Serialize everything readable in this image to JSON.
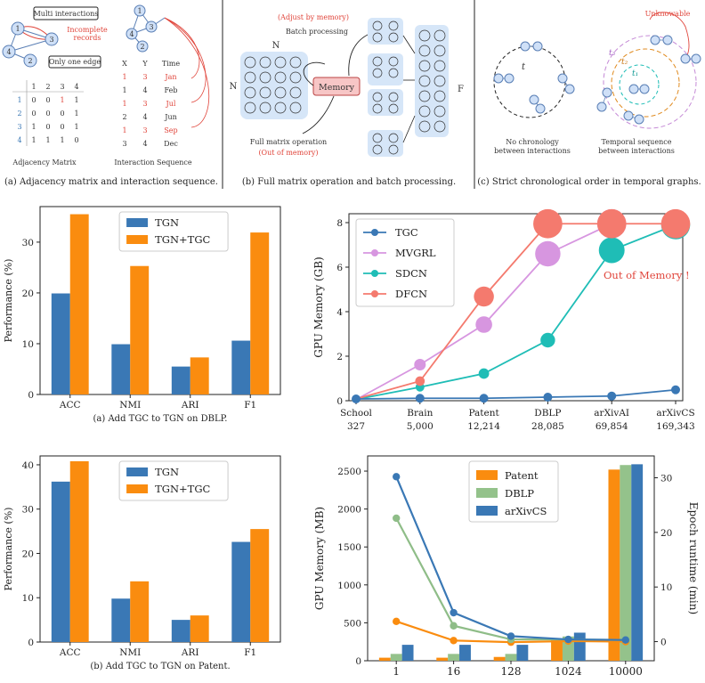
{
  "panels": {
    "a": {
      "caption": "(a) Adjacency matrix and interaction sequence.",
      "callout_multi": "Multi interactions",
      "callout_incomplete_1": "Incomplete",
      "callout_incomplete_2": "records",
      "callout_one_edge": "Only one edge",
      "nodes": [
        "1",
        "2",
        "3",
        "4"
      ],
      "matrix_header": [
        "1",
        "2",
        "3",
        "4"
      ],
      "matrix_rows": [
        {
          "label": "1",
          "cells": [
            "0",
            "0",
            "1",
            "1"
          ]
        },
        {
          "label": "2",
          "cells": [
            "0",
            "0",
            "0",
            "1"
          ]
        },
        {
          "label": "3",
          "cells": [
            "1",
            "0",
            "0",
            "1"
          ]
        },
        {
          "label": "4",
          "cells": [
            "1",
            "1",
            "1",
            "0"
          ]
        }
      ],
      "matrix_label": "Adjacency Matrix",
      "seq_header": [
        "X",
        "Y",
        "Time"
      ],
      "seq_rows": [
        {
          "x": "1",
          "y": "3",
          "t": "Jan",
          "red": true
        },
        {
          "x": "1",
          "y": "4",
          "t": "Feb",
          "red": false
        },
        {
          "x": "1",
          "y": "3",
          "t": "Jul",
          "red": true
        },
        {
          "x": "2",
          "y": "4",
          "t": "Jun",
          "red": false
        },
        {
          "x": "1",
          "y": "3",
          "t": "Sep",
          "red": true
        },
        {
          "x": "3",
          "y": "4",
          "t": "Dec",
          "red": false
        }
      ],
      "seq_label": "Interaction Sequence"
    },
    "b": {
      "caption": "(b) Full matrix operation and batch processing.",
      "adjust_label": "(Adjust by memory)",
      "batch_label": "Batch processing",
      "memory_label": "Memory",
      "full_label": "Full matrix operation",
      "oom_label": "(Out of memory)",
      "n_top": "N",
      "n_left": "N",
      "f_label": "F"
    },
    "c": {
      "caption": "(c) Strict chronological order in temporal graphs.",
      "left_label_1": "No chronology",
      "left_label_2": "between interactions",
      "right_label_1": "Temporal sequence",
      "right_label_2": "between interactions",
      "unknowable": "Unknowable",
      "t_label": "t",
      "t1": "t₁",
      "t2": "t₂",
      "t3": "t₃"
    }
  },
  "chart_data": [
    {
      "id": "dblp-bar",
      "type": "bar",
      "caption": "(a) Add TGC to TGN on DBLP.",
      "ylabel": "Performance (%)",
      "categories": [
        "ACC",
        "NMI",
        "ARI",
        "F1"
      ],
      "ylim": [
        0,
        37
      ],
      "yticks": [
        0,
        10,
        20,
        30
      ],
      "legend": "top-left",
      "series": [
        {
          "name": "TGN",
          "color": "#3a78b5",
          "values": [
            19.9,
            9.9,
            5.5,
            10.6
          ]
        },
        {
          "name": "TGN+TGC",
          "color": "#fa8c0f",
          "values": [
            35.5,
            25.3,
            7.3,
            31.9
          ]
        }
      ]
    },
    {
      "id": "memory-line",
      "type": "line",
      "ylabel": "GPU Memory (GB)",
      "categories": [
        "School",
        "Brain",
        "Patent",
        "DBLP",
        "arXivAI",
        "arXivCS"
      ],
      "categories_sub": [
        "327",
        "5,000",
        "12,214",
        "28,085",
        "69,854",
        "169,343"
      ],
      "ylim": [
        0,
        8.4
      ],
      "yticks": [
        0,
        2,
        4,
        6,
        8
      ],
      "annotation": "Out of Memory !",
      "legend": "top-left",
      "series": [
        {
          "name": "TGC",
          "color": "#3a78b5",
          "values": [
            0.08,
            0.11,
            0.11,
            0.16,
            0.21,
            0.49
          ]
        },
        {
          "name": "MVGRL",
          "color": "#d796e0",
          "values": [
            0.05,
            1.62,
            3.42,
            6.6,
            7.95,
            null
          ]
        },
        {
          "name": "SDCN",
          "color": "#1fbdb6",
          "values": [
            0.06,
            0.61,
            1.22,
            2.72,
            6.76,
            7.9
          ]
        },
        {
          "name": "DFCN",
          "color": "#f47a6e",
          "values": [
            0.08,
            0.88,
            4.68,
            7.95,
            7.95,
            7.95
          ]
        }
      ]
    },
    {
      "id": "patent-bar",
      "type": "bar",
      "caption": "(b) Add TGC to TGN on Patent.",
      "ylabel": "Performance (%)",
      "categories": [
        "ACC",
        "NMI",
        "ARI",
        "F1"
      ],
      "ylim": [
        0,
        42
      ],
      "yticks": [
        0,
        10,
        20,
        30,
        40
      ],
      "legend": "top-left",
      "series": [
        {
          "name": "TGN",
          "color": "#3a78b5",
          "values": [
            36.2,
            9.8,
            5.0,
            22.6
          ]
        },
        {
          "name": "TGN+TGC",
          "color": "#fa8c0f",
          "values": [
            40.8,
            13.7,
            6.0,
            25.5
          ]
        }
      ]
    },
    {
      "id": "batch-combo",
      "type": "bar",
      "ylabel": "GPU Memory (MB)",
      "y2label": "Epoch runtime (min)",
      "categories": [
        "1",
        "16",
        "128",
        "1024",
        "10000"
      ],
      "ylim": [
        0,
        2700
      ],
      "yticks": [
        0,
        500,
        1000,
        1500,
        2000,
        2500
      ],
      "y2lim": [
        -3.5,
        34
      ],
      "y2ticks": [
        0,
        10,
        20,
        30
      ],
      "legend": "top-center",
      "series": [
        {
          "name": "Patent",
          "color": "#fa8c0f",
          "line_color": "#fa8c0f",
          "memory": [
            40,
            40,
            50,
            290,
            2520
          ],
          "runtime": [
            3.7,
            0.2,
            -0.1,
            0.1,
            0.0
          ]
        },
        {
          "name": "DBLP",
          "color": "#94c28b",
          "line_color": "#8fbd88",
          "memory": [
            90,
            90,
            90,
            320,
            2580
          ],
          "runtime": [
            22.6,
            2.9,
            0.4,
            0.4,
            0.3
          ]
        },
        {
          "name": "arXivCS",
          "color": "#3a78b5",
          "line_color": "#3a78b5",
          "memory": [
            210,
            210,
            210,
            370,
            2590
          ],
          "runtime": [
            30.2,
            5.3,
            1.0,
            0.4,
            0.3
          ]
        }
      ]
    }
  ]
}
